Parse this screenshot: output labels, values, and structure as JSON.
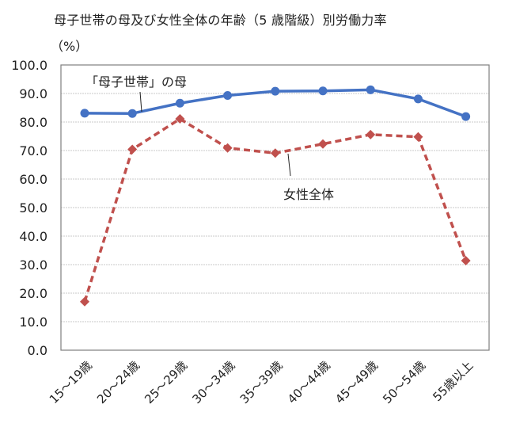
{
  "chart_data": {
    "type": "line",
    "title": "母子世帯の母及び女性全体の年齢（5歳階級）別労働力率",
    "ylabel": "（%）",
    "xlabel": "",
    "categories": [
      "15～19歳",
      "20～24歳",
      "25～29歳",
      "30～34歳",
      "35～39歳",
      "40～44歳",
      "45～49歳",
      "50～54歳",
      "55歳以上"
    ],
    "ylim": [
      0,
      100
    ],
    "yticks": [
      "0.0",
      "10.0",
      "20.0",
      "30.0",
      "40.0",
      "50.0",
      "60.0",
      "70.0",
      "80.0",
      "90.0",
      "100.0"
    ],
    "grid": true,
    "legend": "inline annotations",
    "series": [
      {
        "name": "「母子世帯」の母",
        "color": "#4472C4",
        "style": "solid",
        "marker": "circle",
        "values": [
          83.1,
          83.0,
          86.6,
          89.3,
          90.8,
          90.9,
          91.3,
          88.1,
          81.9
        ]
      },
      {
        "name": "女性全体",
        "color": "#C0504D",
        "style": "dashed",
        "marker": "diamond",
        "values": [
          17.0,
          70.4,
          81.1,
          70.9,
          69.1,
          72.3,
          75.6,
          74.8,
          31.4
        ]
      }
    ]
  },
  "header": {
    "title": "母子世帯の母及び女性全体の年齢（5 歳階級）別労働力率",
    "unit": "（%）"
  },
  "annotations": {
    "mother": "「母子世帯」の母",
    "women": "女性全体"
  }
}
